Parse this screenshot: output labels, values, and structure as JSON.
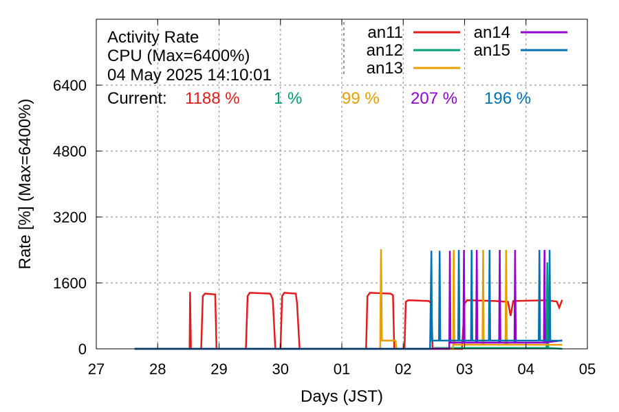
{
  "chart_data": {
    "type": "line",
    "title": "Activity Rate",
    "subtitle": "CPU (Max=6400%)",
    "timestamp": "04 May 2025 14:10:01",
    "current_label": "Current:",
    "xlabel": "Days (JST)",
    "ylabel": "Rate [%]  (Max=6400%)",
    "xlim": [
      "2025-04-27",
      "2025-05-05"
    ],
    "ylim": [
      0,
      8000
    ],
    "x_ticks": [
      "27",
      "28",
      "29",
      "30",
      "01",
      "02",
      "03",
      "04",
      "05"
    ],
    "y_ticks": [
      "0",
      "1600",
      "3200",
      "4800",
      "6400"
    ],
    "grid": true,
    "legend_position": "top-right",
    "series": [
      {
        "name": "an11",
        "color": "#e41a1c",
        "current": "1188 %",
        "points": [
          [
            "2025-04-27 15:00",
            0
          ],
          [
            "2025-04-28 12:30",
            0
          ],
          [
            "2025-04-28 12:40",
            1380
          ],
          [
            "2025-04-28 13:00",
            0
          ],
          [
            "2025-04-28 17:00",
            0
          ],
          [
            "2025-04-28 17:40",
            1280
          ],
          [
            "2025-04-28 18:30",
            1340
          ],
          [
            "2025-04-28 22:30",
            1320
          ],
          [
            "2025-04-28 23:00",
            0
          ],
          [
            "2025-04-29 10:30",
            0
          ],
          [
            "2025-04-29 11:10",
            1280
          ],
          [
            "2025-04-29 12:00",
            1360
          ],
          [
            "2025-04-29 20:00",
            1340
          ],
          [
            "2025-04-29 21:00",
            1200
          ],
          [
            "2025-04-29 22:00",
            0
          ],
          [
            "2025-04-30 00:00",
            0
          ],
          [
            "2025-04-30 00:40",
            1280
          ],
          [
            "2025-04-30 01:30",
            1360
          ],
          [
            "2025-04-30 06:00",
            1340
          ],
          [
            "2025-04-30 06:30",
            1100
          ],
          [
            "2025-04-30 07:30",
            0
          ],
          [
            "2025-05-01 09:30",
            0
          ],
          [
            "2025-05-01 10:00",
            1280
          ],
          [
            "2025-05-01 11:00",
            1360
          ],
          [
            "2025-05-01 19:00",
            1340
          ],
          [
            "2025-05-01 20:00",
            1300
          ],
          [
            "2025-05-01 20:30",
            0
          ],
          [
            "2025-05-02 00:30",
            0
          ],
          [
            "2025-05-02 01:00",
            1140
          ],
          [
            "2025-05-02 02:00",
            1180
          ],
          [
            "2025-05-02 10:00",
            1160
          ],
          [
            "2025-05-02 11:00",
            1100
          ],
          [
            "2025-05-02 11:30",
            0
          ],
          [
            "2025-05-02 23:00",
            0
          ],
          [
            "2025-05-03 00:00",
            1100
          ],
          [
            "2025-05-03 01:00",
            1180
          ],
          [
            "2025-05-03 12:00",
            1160
          ],
          [
            "2025-05-03 17:00",
            1140
          ],
          [
            "2025-05-03 18:00",
            800
          ],
          [
            "2025-05-03 19:00",
            1160
          ],
          [
            "2025-05-04 08:00",
            1180
          ],
          [
            "2025-05-04 12:00",
            1150
          ],
          [
            "2025-05-04 13:00",
            1000
          ],
          [
            "2025-05-04 14:10",
            1188
          ]
        ]
      },
      {
        "name": "an12",
        "color": "#009e73",
        "current": "1 %",
        "points": [
          [
            "2025-04-27 15:00",
            0
          ],
          [
            "2025-05-02 11:30",
            0
          ],
          [
            "2025-05-02 12:00",
            20
          ],
          [
            "2025-05-03 00:00",
            20
          ],
          [
            "2025-05-04 08:00",
            20
          ],
          [
            "2025-05-04 08:20",
            2100
          ],
          [
            "2025-05-04 08:40",
            20
          ],
          [
            "2025-05-04 14:10",
            1
          ]
        ]
      },
      {
        "name": "an13",
        "color": "#e69f00",
        "current": "99 %",
        "points": [
          [
            "2025-04-27 15:00",
            0
          ],
          [
            "2025-05-01 15:00",
            0
          ],
          [
            "2025-05-01 15:20",
            2420
          ],
          [
            "2025-05-01 15:40",
            200
          ],
          [
            "2025-05-01 21:00",
            200
          ],
          [
            "2025-05-01 21:20",
            0
          ],
          [
            "2025-05-02 19:30",
            0
          ],
          [
            "2025-05-02 19:45",
            2400
          ],
          [
            "2025-05-02 20:00",
            100
          ],
          [
            "2025-05-03 07:00",
            100
          ],
          [
            "2025-05-03 07:15",
            2400
          ],
          [
            "2025-05-03 07:30",
            100
          ],
          [
            "2025-05-03 16:00",
            100
          ],
          [
            "2025-05-03 16:15",
            2400
          ],
          [
            "2025-05-03 16:30",
            100
          ],
          [
            "2025-05-04 14:10",
            99
          ]
        ]
      },
      {
        "name": "an14",
        "color": "#9400d3",
        "current": "207 %",
        "points": [
          [
            "2025-04-27 15:00",
            0
          ],
          [
            "2025-05-02 12:00",
            0
          ],
          [
            "2025-05-02 18:00",
            0
          ],
          [
            "2025-05-02 18:15",
            2380
          ],
          [
            "2025-05-02 18:30",
            150
          ],
          [
            "2025-05-02 23:30",
            150
          ],
          [
            "2025-05-02 23:45",
            2400
          ],
          [
            "2025-05-03 00:00",
            150
          ],
          [
            "2025-05-03 04:30",
            150
          ],
          [
            "2025-05-03 04:45",
            2400
          ],
          [
            "2025-05-03 05:00",
            150
          ],
          [
            "2025-05-03 13:30",
            150
          ],
          [
            "2025-05-03 13:45",
            2400
          ],
          [
            "2025-05-03 14:00",
            150
          ],
          [
            "2025-05-03 19:30",
            150
          ],
          [
            "2025-05-03 19:45",
            2400
          ],
          [
            "2025-05-03 20:00",
            150
          ],
          [
            "2025-05-04 07:00",
            150
          ],
          [
            "2025-05-04 07:15",
            2400
          ],
          [
            "2025-05-04 07:30",
            150
          ],
          [
            "2025-05-04 14:10",
            207
          ]
        ]
      },
      {
        "name": "an15",
        "color": "#0072b2",
        "current": "196 %",
        "points": [
          [
            "2025-04-27 15:00",
            0
          ],
          [
            "2025-05-02 10:30",
            0
          ],
          [
            "2025-05-02 11:00",
            2380
          ],
          [
            "2025-05-02 11:15",
            200
          ],
          [
            "2025-05-02 14:00",
            200
          ],
          [
            "2025-05-02 14:15",
            2380
          ],
          [
            "2025-05-02 14:30",
            200
          ],
          [
            "2025-05-02 21:30",
            200
          ],
          [
            "2025-05-02 21:45",
            2400
          ],
          [
            "2025-05-02 22:00",
            200
          ],
          [
            "2025-05-03 02:30",
            200
          ],
          [
            "2025-05-03 02:45",
            2400
          ],
          [
            "2025-05-03 03:00",
            200
          ],
          [
            "2025-05-03 09:30",
            200
          ],
          [
            "2025-05-03 09:45",
            2400
          ],
          [
            "2025-05-03 10:00",
            200
          ],
          [
            "2025-05-04 05:00",
            200
          ],
          [
            "2025-05-04 05:15",
            2400
          ],
          [
            "2025-05-04 05:30",
            200
          ],
          [
            "2025-05-04 09:00",
            200
          ],
          [
            "2025-05-04 09:15",
            2400
          ],
          [
            "2025-05-04 09:30",
            200
          ],
          [
            "2025-05-04 14:10",
            196
          ]
        ]
      }
    ]
  }
}
